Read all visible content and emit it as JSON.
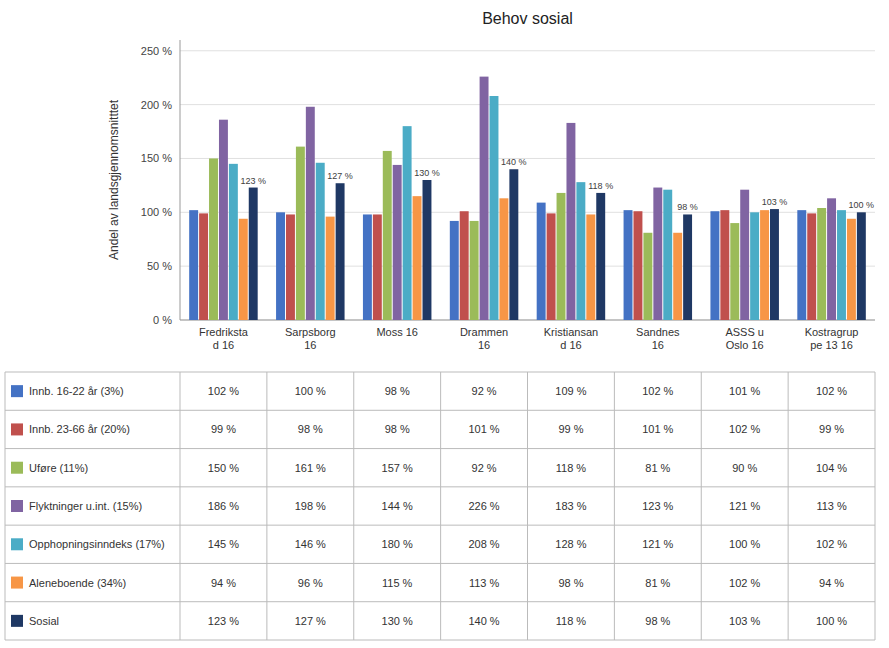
{
  "chart_data": {
    "type": "bar",
    "title": "Behov sosial",
    "ylabel": "Andel av landsgjennomsnitttet",
    "categories": [
      "Fredriksta\nd 16",
      "Sarpsborg\n16",
      "Moss 16",
      "Drammen\n16",
      "Kristiansan\nd 16",
      "Sandnes\n16",
      "ASSS u\nOslo 16",
      "Kostragrup\npe 13 16"
    ],
    "series": [
      {
        "name": "Innb. 16-22 år (3%)",
        "color": "#4472c4",
        "values": [
          102,
          100,
          98,
          92,
          109,
          102,
          101,
          102
        ],
        "value_labels": [
          "102 %",
          "100 %",
          "98 %",
          "92 %",
          "109 %",
          "102 %",
          "101 %",
          "102 %"
        ]
      },
      {
        "name": "Innb. 23-66 år (20%)",
        "color": "#c0504d",
        "values": [
          99,
          98,
          98,
          101,
          99,
          101,
          102,
          99
        ],
        "value_labels": [
          "99 %",
          "98 %",
          "98 %",
          "101 %",
          "99 %",
          "101 %",
          "102 %",
          "99 %"
        ]
      },
      {
        "name": "Uføre (11%)",
        "color": "#9bbb59",
        "values": [
          150,
          161,
          157,
          92,
          118,
          81,
          90,
          104
        ],
        "value_labels": [
          "150 %",
          "161 %",
          "157 %",
          "92 %",
          "118 %",
          "81 %",
          "90 %",
          "104 %"
        ]
      },
      {
        "name": "Flyktninger u.int. (15%)",
        "color": "#8064a2",
        "values": [
          186,
          198,
          144,
          226,
          183,
          123,
          121,
          113
        ],
        "value_labels": [
          "186 %",
          "198 %",
          "144 %",
          "226 %",
          "183 %",
          "123 %",
          "121 %",
          "113 %"
        ]
      },
      {
        "name": "Opphopningsinndeks (17%)",
        "color": "#4bacc6",
        "values": [
          145,
          146,
          180,
          208,
          128,
          121,
          100,
          102
        ],
        "value_labels": [
          "145 %",
          "146 %",
          "180 %",
          "208 %",
          "128 %",
          "121 %",
          "100 %",
          "102 %"
        ]
      },
      {
        "name": "Aleneboende (34%)",
        "color": "#f79646",
        "values": [
          94,
          96,
          115,
          113,
          98,
          81,
          102,
          94
        ],
        "value_labels": [
          "94 %",
          "96 %",
          "115 %",
          "113 %",
          "98 %",
          "81 %",
          "102 %",
          "94 %"
        ]
      },
      {
        "name": "Sosial",
        "color": "#1f3864",
        "values": [
          123,
          127,
          130,
          140,
          118,
          98,
          103,
          100
        ],
        "value_labels": [
          "123 %",
          "127 %",
          "130 %",
          "140 %",
          "118 %",
          "98 %",
          "103 %",
          "100 %"
        ],
        "data_labels": true
      }
    ],
    "ylim": [
      0,
      260
    ],
    "yticks": [
      {
        "value": 0,
        "label": "0 %"
      },
      {
        "value": 50,
        "label": "50 %"
      },
      {
        "value": 100,
        "label": "100 %"
      },
      {
        "value": 150,
        "label": "150 %"
      },
      {
        "value": 200,
        "label": "200 %"
      },
      {
        "value": 250,
        "label": "250 %"
      }
    ],
    "grid": true
  }
}
